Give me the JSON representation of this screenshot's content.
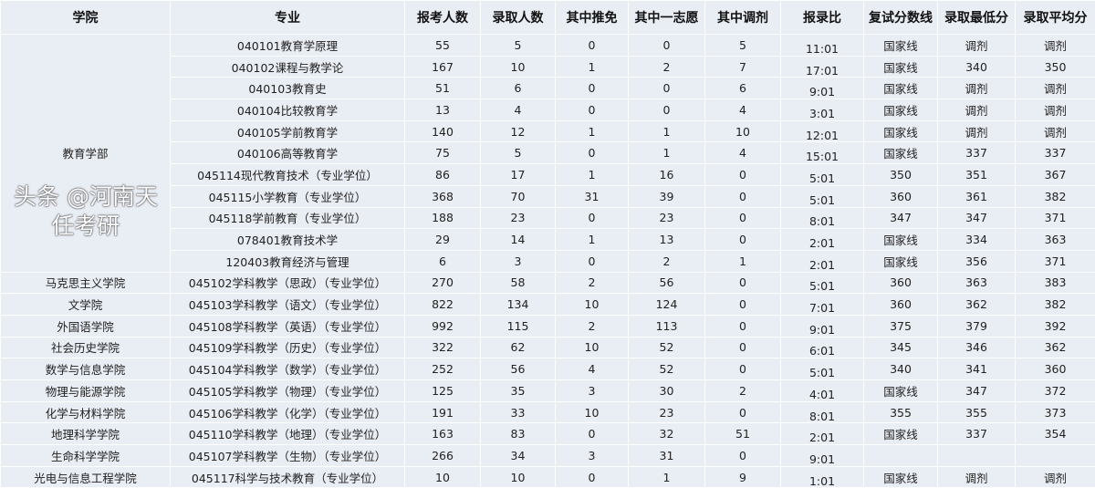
{
  "headers": [
    "学院",
    "专业",
    "报考人数",
    "录取人数",
    "其中推免",
    "其中一志愿",
    "其中调剂",
    "报录比",
    "复试分数线",
    "录取最低分",
    "录取平均分"
  ],
  "groups": [
    {
      "college": "教育学部",
      "rows": [
        [
          "040101教育学原理",
          "55",
          "5",
          "0",
          "0",
          "5",
          "11:01",
          "国家线",
          "调剂",
          "调剂"
        ],
        [
          "040102课程与教学论",
          "167",
          "10",
          "1",
          "2",
          "7",
          "17:01",
          "国家线",
          "340",
          "350"
        ],
        [
          "040103教育史",
          "51",
          "6",
          "0",
          "0",
          "6",
          "9:01",
          "国家线",
          "调剂",
          "调剂"
        ],
        [
          "040104比较教育学",
          "13",
          "4",
          "0",
          "0",
          "4",
          "3:01",
          "国家线",
          "调剂",
          "调剂"
        ],
        [
          "040105学前教育学",
          "140",
          "12",
          "1",
          "1",
          "10",
          "12:01",
          "国家线",
          "调剂",
          "调剂"
        ],
        [
          "040106高等教育学",
          "75",
          "5",
          "0",
          "1",
          "4",
          "15:01",
          "国家线",
          "337",
          "337"
        ],
        [
          "045114现代教育技术（专业学位）",
          "86",
          "17",
          "1",
          "16",
          "0",
          "5:01",
          "350",
          "351",
          "367"
        ],
        [
          "045115小学教育（专业学位）",
          "368",
          "70",
          "31",
          "39",
          "0",
          "5:01",
          "360",
          "361",
          "382"
        ],
        [
          "045118学前教育（专业学位）",
          "188",
          "23",
          "0",
          "23",
          "0",
          "8:01",
          "347",
          "347",
          "371"
        ],
        [
          "078401教育技术学",
          "29",
          "14",
          "1",
          "13",
          "0",
          "2:01",
          "国家线",
          "334",
          "363"
        ],
        [
          "120403教育经济与管理",
          "6",
          "3",
          "0",
          "2",
          "1",
          "2:01",
          "国家线",
          "356",
          "371"
        ]
      ]
    },
    {
      "college": "马克思主义学院",
      "rows": [
        [
          "045102学科教学（思政）（专业学位）",
          "270",
          "58",
          "2",
          "56",
          "0",
          "5:01",
          "360",
          "363",
          "383"
        ]
      ]
    },
    {
      "college": "文学院",
      "rows": [
        [
          "045103学科教学（语文）（专业学位）",
          "822",
          "134",
          "10",
          "124",
          "0",
          "7:01",
          "360",
          "362",
          "382"
        ]
      ]
    },
    {
      "college": "外国语学院",
      "rows": [
        [
          "045108学科教学（英语）（专业学位）",
          "992",
          "115",
          "2",
          "113",
          "0",
          "9:01",
          "375",
          "379",
          "392"
        ]
      ]
    },
    {
      "college": "社会历史学院",
      "rows": [
        [
          "045109学科教学（历史）（专业学位）",
          "322",
          "62",
          "10",
          "52",
          "0",
          "6:01",
          "345",
          "346",
          "362"
        ]
      ]
    },
    {
      "college": "数学与信息学院",
      "rows": [
        [
          "045104学科教学（数学）（专业学位）",
          "252",
          "56",
          "4",
          "52",
          "0",
          "5:01",
          "340",
          "341",
          "360"
        ]
      ]
    },
    {
      "college": "物理与能源学院",
      "rows": [
        [
          "045105学科教学（物理）（专业学位）",
          "125",
          "35",
          "3",
          "30",
          "2",
          "4:01",
          "国家线",
          "347",
          "372"
        ]
      ]
    },
    {
      "college": "化学与材料学院",
      "rows": [
        [
          "045106学科教学（化学）（专业学位）",
          "191",
          "33",
          "10",
          "23",
          "0",
          "8:01",
          "355",
          "355",
          "373"
        ]
      ]
    },
    {
      "college": "地理科学学院",
      "rows": [
        [
          "045110学科教学（地理）（专业学位）",
          "163",
          "83",
          "0",
          "32",
          "51",
          "2:01",
          "国家线",
          "337",
          "354"
        ]
      ]
    },
    {
      "college": "生命科学学院",
      "rows": [
        [
          "045107学科教学（生物）（专业学位）",
          "266",
          "34",
          "3",
          "31",
          "0",
          "9:01",
          "",
          "",
          ""
        ]
      ]
    },
    {
      "college": "光电与信息工程学院",
      "rows": [
        [
          "045117科学与技术教育（专业学位）",
          "10",
          "10",
          "0",
          "1",
          "9",
          "1:01",
          "国家线",
          "调剂",
          "调剂"
        ]
      ]
    }
  ],
  "watermark": "头条 @河南天任考研"
}
